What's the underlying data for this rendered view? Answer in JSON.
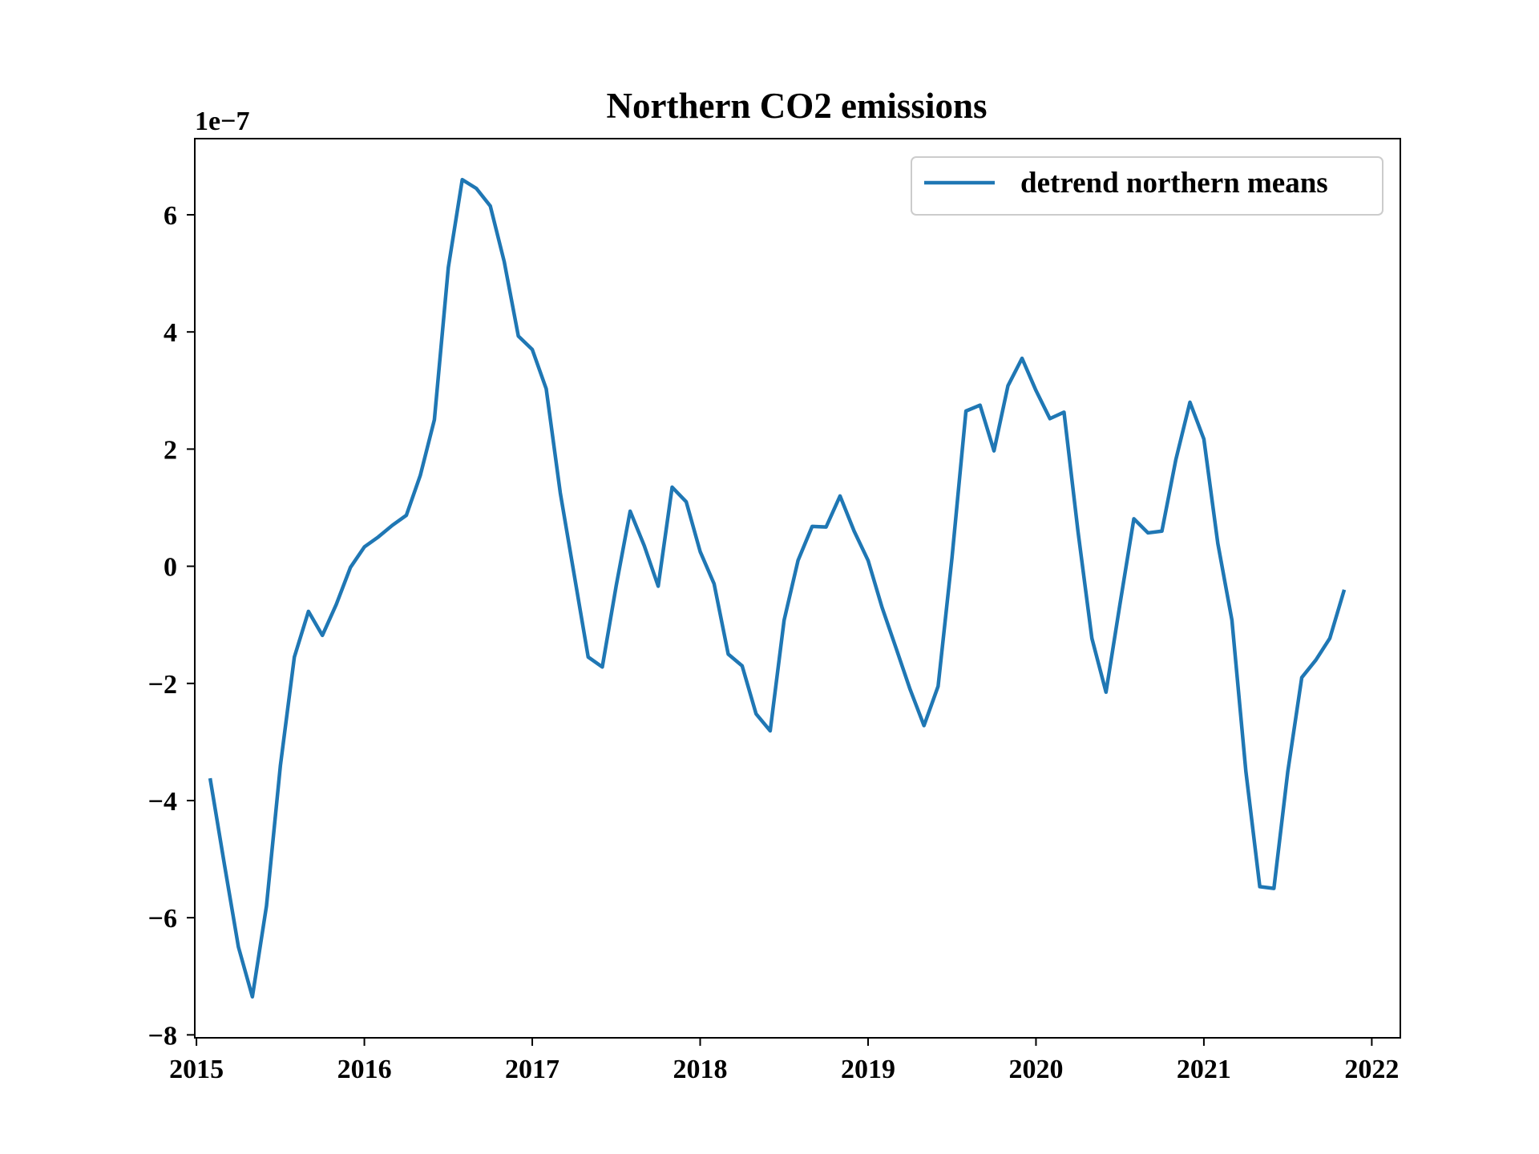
{
  "chart_data": {
    "type": "line",
    "title": "Northern CO2 emissions",
    "xlabel": "",
    "ylabel": "",
    "y_offset_label": "1e−7",
    "y_scale_exponent": -7,
    "xlim": [
      2014.99,
      2022.17
    ],
    "ylim": [
      -8.05,
      7.3
    ],
    "x_ticks": [
      2015,
      2016,
      2017,
      2018,
      2019,
      2020,
      2021,
      2022
    ],
    "x_tick_labels": [
      "2015",
      "2016",
      "2017",
      "2018",
      "2019",
      "2020",
      "2021",
      "2022"
    ],
    "y_ticks": [
      -8,
      -6,
      -4,
      -2,
      0,
      2,
      4,
      6
    ],
    "y_tick_labels": [
      "−8",
      "−6",
      "−4",
      "−2",
      "0",
      "2",
      "4",
      "6"
    ],
    "grid": false,
    "legend": {
      "position": "top-right",
      "entries": [
        "detrend northern means"
      ]
    },
    "series": [
      {
        "name": "detrend northern means",
        "color": "#1f77b4",
        "x": [
          2015.083,
          2015.167,
          2015.25,
          2015.333,
          2015.417,
          2015.5,
          2015.583,
          2015.667,
          2015.75,
          2015.833,
          2015.917,
          2016.0,
          2016.083,
          2016.167,
          2016.25,
          2016.333,
          2016.417,
          2016.5,
          2016.583,
          2016.667,
          2016.75,
          2016.833,
          2016.917,
          2017.0,
          2017.083,
          2017.167,
          2017.25,
          2017.333,
          2017.417,
          2017.5,
          2017.583,
          2017.667,
          2017.75,
          2017.833,
          2017.917,
          2018.0,
          2018.083,
          2018.167,
          2018.25,
          2018.333,
          2018.417,
          2018.5,
          2018.583,
          2018.667,
          2018.75,
          2018.833,
          2018.917,
          2019.0,
          2019.083,
          2019.167,
          2019.25,
          2019.333,
          2019.417,
          2019.5,
          2019.583,
          2019.667,
          2019.75,
          2019.833,
          2019.917,
          2020.0,
          2020.083,
          2020.167,
          2020.25,
          2020.333,
          2020.417,
          2020.5,
          2020.583,
          2020.667,
          2020.75,
          2020.833,
          2020.917,
          2021.0,
          2021.083,
          2021.167,
          2021.25,
          2021.333,
          2021.417,
          2021.5,
          2021.583,
          2021.667,
          2021.75,
          2021.833
        ],
        "y": [
          -3.65,
          -5.1,
          -6.5,
          -7.35,
          -5.8,
          -3.4,
          -1.55,
          -0.77,
          -1.18,
          -0.65,
          -0.02,
          0.33,
          0.5,
          0.7,
          0.87,
          1.55,
          2.5,
          5.1,
          6.6,
          6.45,
          6.15,
          5.2,
          3.93,
          3.7,
          3.03,
          1.25,
          -0.15,
          -1.55,
          -1.72,
          -0.33,
          0.94,
          0.35,
          -0.34,
          1.35,
          1.1,
          0.25,
          -0.3,
          -1.5,
          -1.7,
          -2.52,
          -2.81,
          -0.92,
          0.1,
          0.68,
          0.67,
          1.2,
          0.6,
          0.1,
          -0.7,
          -1.4,
          -2.1,
          -2.72,
          -2.05,
          0.15,
          2.65,
          2.75,
          1.97,
          3.08,
          3.55,
          3.0,
          2.52,
          2.63,
          0.6,
          -1.23,
          -2.15,
          -0.65,
          0.81,
          0.57,
          0.6,
          1.82,
          2.8,
          2.17,
          0.39,
          -0.92,
          -3.5,
          -5.47,
          -5.5,
          -3.5,
          -1.9,
          -1.6,
          -1.23,
          -0.43
        ]
      }
    ]
  }
}
